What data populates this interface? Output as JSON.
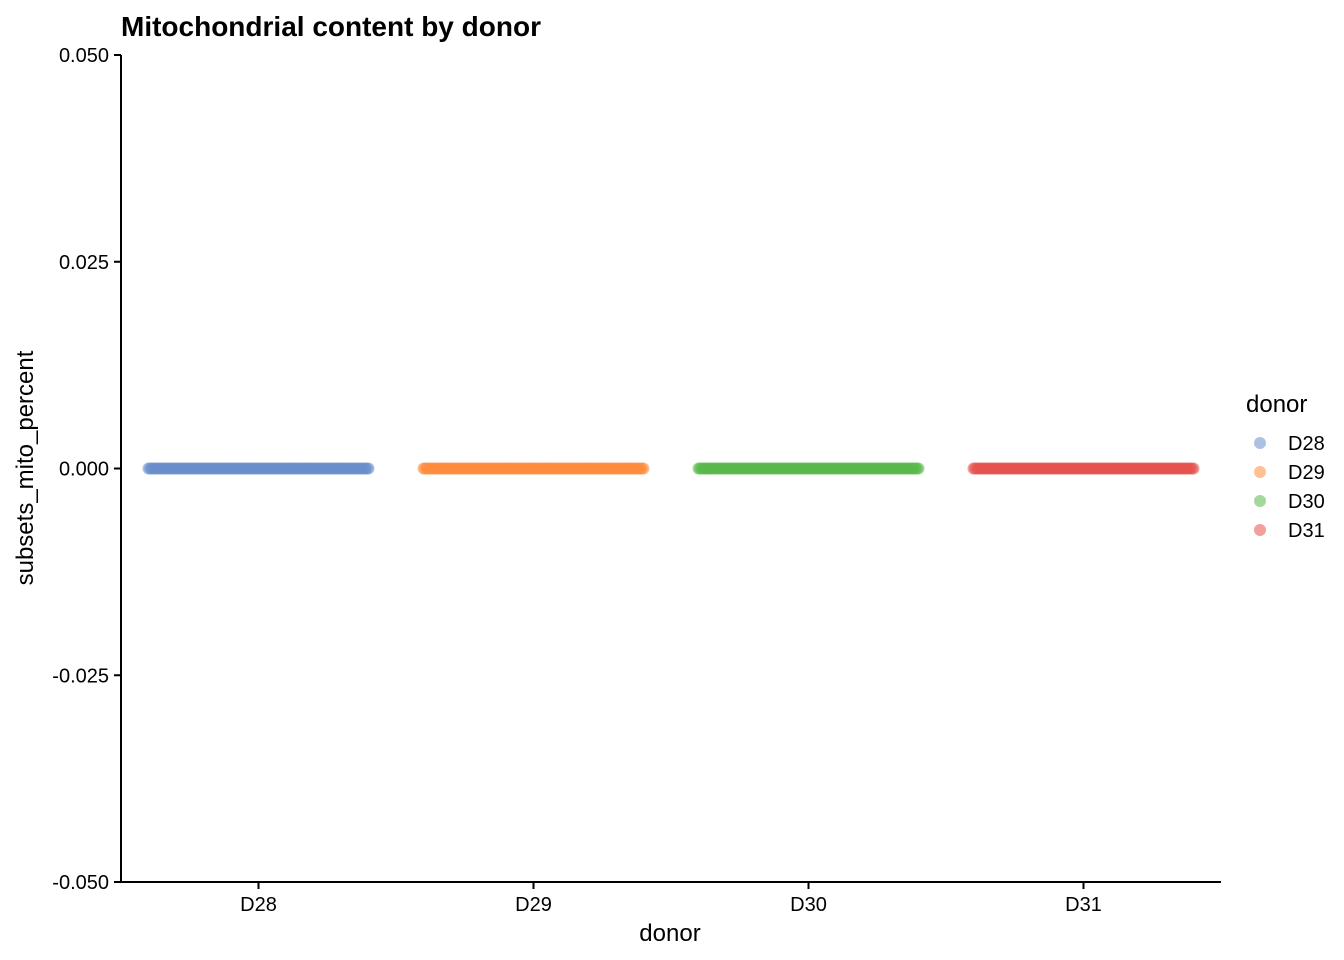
{
  "chart_data": {
    "type": "scatter",
    "title": "Mitochondrial content by donor",
    "xlabel": "donor",
    "ylabel": "subsets_mito_percent",
    "categories": [
      "D28",
      "D29",
      "D30",
      "D31"
    ],
    "ylim": [
      -0.05,
      0.05
    ],
    "yticks": [
      "-0.050",
      "-0.025",
      "0.000",
      "0.025",
      "0.050"
    ],
    "ytick_values": [
      -0.05,
      -0.025,
      0,
      0.025,
      0.05
    ],
    "grid": false,
    "jitter": true,
    "legend": {
      "title": "donor",
      "placement": "right",
      "entries": [
        "D28",
        "D29",
        "D30",
        "D31"
      ]
    },
    "series": [
      {
        "name": "D28",
        "category": "D28",
        "y": 0.0,
        "color": "#6a8ecb"
      },
      {
        "name": "D29",
        "category": "D29",
        "y": 0.0,
        "color": "#fd8d3c"
      },
      {
        "name": "D30",
        "category": "D30",
        "y": 0.0,
        "color": "#5ab84a"
      },
      {
        "name": "D31",
        "category": "D31",
        "y": 0.0,
        "color": "#e5524f"
      }
    ]
  }
}
